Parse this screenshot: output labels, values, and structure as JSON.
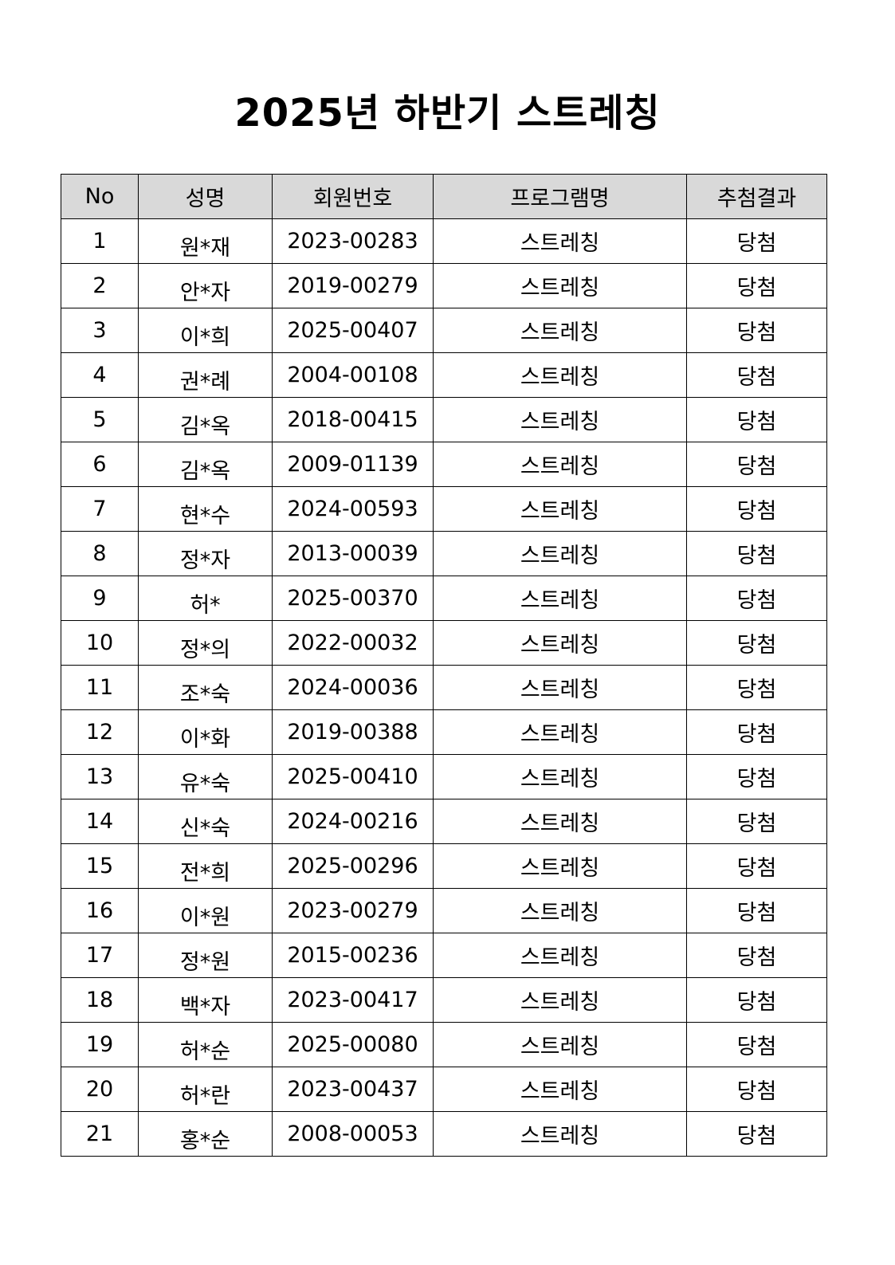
{
  "document": {
    "title": "2025년 하반기 스트레칭"
  },
  "table": {
    "headers": {
      "no": "No",
      "name": "성명",
      "member_id": "회원번호",
      "program": "프로그램명",
      "result": "추첨결과"
    },
    "rows": [
      {
        "no": "1",
        "name": "원*재",
        "member_id": "2023-00283",
        "program": "스트레칭",
        "result": "당첨"
      },
      {
        "no": "2",
        "name": "안*자",
        "member_id": "2019-00279",
        "program": "스트레칭",
        "result": "당첨"
      },
      {
        "no": "3",
        "name": "이*희",
        "member_id": "2025-00407",
        "program": "스트레칭",
        "result": "당첨"
      },
      {
        "no": "4",
        "name": "권*례",
        "member_id": "2004-00108",
        "program": "스트레칭",
        "result": "당첨"
      },
      {
        "no": "5",
        "name": "김*옥",
        "member_id": "2018-00415",
        "program": "스트레칭",
        "result": "당첨"
      },
      {
        "no": "6",
        "name": "김*옥",
        "member_id": "2009-01139",
        "program": "스트레칭",
        "result": "당첨"
      },
      {
        "no": "7",
        "name": "현*수",
        "member_id": "2024-00593",
        "program": "스트레칭",
        "result": "당첨"
      },
      {
        "no": "8",
        "name": "정*자",
        "member_id": "2013-00039",
        "program": "스트레칭",
        "result": "당첨"
      },
      {
        "no": "9",
        "name": "허*",
        "member_id": "2025-00370",
        "program": "스트레칭",
        "result": "당첨"
      },
      {
        "no": "10",
        "name": "정*의",
        "member_id": "2022-00032",
        "program": "스트레칭",
        "result": "당첨"
      },
      {
        "no": "11",
        "name": "조*숙",
        "member_id": "2024-00036",
        "program": "스트레칭",
        "result": "당첨"
      },
      {
        "no": "12",
        "name": "이*화",
        "member_id": "2019-00388",
        "program": "스트레칭",
        "result": "당첨"
      },
      {
        "no": "13",
        "name": "유*숙",
        "member_id": "2025-00410",
        "program": "스트레칭",
        "result": "당첨"
      },
      {
        "no": "14",
        "name": "신*숙",
        "member_id": "2024-00216",
        "program": "스트레칭",
        "result": "당첨"
      },
      {
        "no": "15",
        "name": "전*희",
        "member_id": "2025-00296",
        "program": "스트레칭",
        "result": "당첨"
      },
      {
        "no": "16",
        "name": "이*원",
        "member_id": "2023-00279",
        "program": "스트레칭",
        "result": "당첨"
      },
      {
        "no": "17",
        "name": "정*원",
        "member_id": "2015-00236",
        "program": "스트레칭",
        "result": "당첨"
      },
      {
        "no": "18",
        "name": "백*자",
        "member_id": "2023-00417",
        "program": "스트레칭",
        "result": "당첨"
      },
      {
        "no": "19",
        "name": "허*순",
        "member_id": "2025-00080",
        "program": "스트레칭",
        "result": "당첨"
      },
      {
        "no": "20",
        "name": "허*란",
        "member_id": "2023-00437",
        "program": "스트레칭",
        "result": "당첨"
      },
      {
        "no": "21",
        "name": "홍*순",
        "member_id": "2008-00053",
        "program": "스트레칭",
        "result": "당첨"
      }
    ]
  },
  "colors": {
    "header_background": "#d9d9d9",
    "border": "#000000",
    "text": "#000000"
  }
}
